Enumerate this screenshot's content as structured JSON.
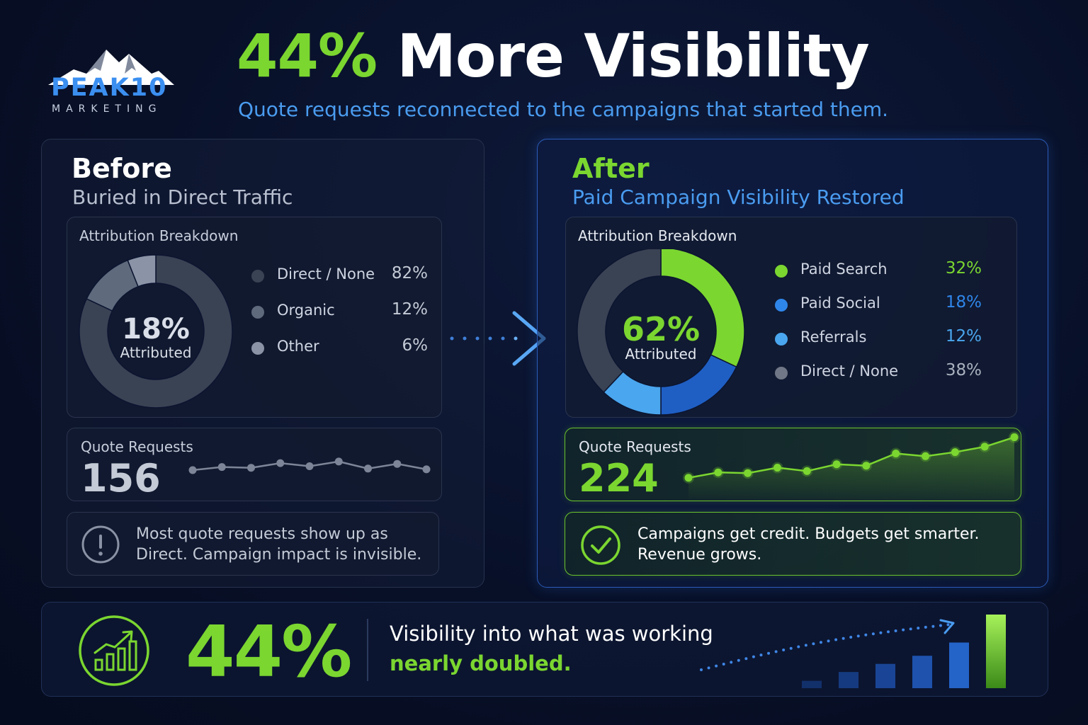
{
  "brand": {
    "name": "PEAK10",
    "tagline": "MARKETING",
    "logo": "mountain-logo-icon"
  },
  "headline": {
    "accent": "44%",
    "rest": "More Visibility"
  },
  "subheadline": "Quote requests reconnected to the campaigns that started them.",
  "before": {
    "title": "Before",
    "subtitle": "Buried in Direct Traffic",
    "attribution_title": "Attribution Breakdown",
    "donut_center_value": "18%",
    "donut_center_label": "Attributed",
    "legend": [
      {
        "label": "Direct / None",
        "value": "82%",
        "color": "#3a4354"
      },
      {
        "label": "Organic",
        "value": "12%",
        "color": "#5f6a7d"
      },
      {
        "label": "Other",
        "value": "6%",
        "color": "#8a94a6"
      }
    ],
    "quote_label": "Quote Requests",
    "quote_value": "156",
    "note_icon": "exclamation-circle-icon",
    "note": [
      "Most quote requests show up as",
      "Direct. Campaign impact is invisible."
    ]
  },
  "after": {
    "title": "After",
    "subtitle": "Paid Campaign Visibility Restored",
    "attribution_title": "Attribution Breakdown",
    "donut_center_value": "62%",
    "donut_center_label": "Attributed",
    "legend": [
      {
        "label": "Paid Search",
        "value": "32%",
        "color": "#7bd630"
      },
      {
        "label": "Paid Social",
        "value": "18%",
        "color": "#2f86ea"
      },
      {
        "label": "Referrals",
        "value": "12%",
        "color": "#4aa6ee"
      },
      {
        "label": "Direct / None",
        "value": "38%",
        "color": "#707887"
      }
    ],
    "quote_label": "Quote Requests",
    "quote_value": "224",
    "note_icon": "check-circle-icon",
    "note": [
      "Campaigns get credit. Budgets get smarter.",
      "Revenue grows."
    ]
  },
  "arrow_icon": "chevron-right-icon",
  "bottom": {
    "icon": "growth-chart-icon",
    "big_value": "44%",
    "line1": "Visibility into what was working",
    "line2": "nearly doubled."
  },
  "chart_data": [
    {
      "type": "pie",
      "variant": "donut",
      "categories": [
        "Direct / None",
        "Organic",
        "Other"
      ],
      "values": [
        82,
        12,
        6
      ],
      "colors": [
        "#3a4354",
        "#5f6a7d",
        "#8a94a6"
      ],
      "center_text": "18% Attributed",
      "title": "Attribution Breakdown"
    },
    {
      "type": "pie",
      "variant": "donut",
      "categories": [
        "Paid Search",
        "Paid Social",
        "Referrals",
        "Direct / None"
      ],
      "values": [
        32,
        18,
        12,
        38
      ],
      "colors": [
        "#7bd630",
        "#1f5fc4",
        "#4aa6ee",
        "#3a4354"
      ],
      "center_text": "62% Attributed",
      "title": "Attribution Breakdown"
    },
    {
      "type": "line",
      "title": "Quote Requests",
      "values": [
        40,
        48,
        46,
        58,
        50,
        62,
        44,
        56,
        42
      ],
      "ylim": [
        0,
        80
      ],
      "color": "#7d8698"
    },
    {
      "type": "area",
      "title": "Quote Requests",
      "values": [
        20,
        28,
        27,
        35,
        30,
        40,
        38,
        56,
        52,
        58,
        66,
        80
      ],
      "ylim": [
        0,
        90
      ],
      "color": "#7bd630"
    },
    {
      "type": "bar",
      "values": [
        10,
        22,
        33,
        44,
        62,
        100
      ],
      "ylim": [
        0,
        100
      ],
      "colors": [
        "#12306a",
        "#163a80",
        "#1a4596",
        "#1e52ad",
        "#2463c8",
        "#7bd630"
      ]
    }
  ]
}
